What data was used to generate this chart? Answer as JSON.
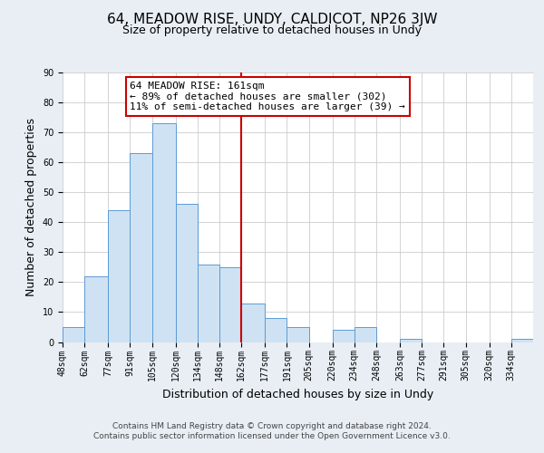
{
  "title": "64, MEADOW RISE, UNDY, CALDICOT, NP26 3JW",
  "subtitle": "Size of property relative to detached houses in Undy",
  "xlabel": "Distribution of detached houses by size in Undy",
  "ylabel": "Number of detached properties",
  "bin_labels": [
    "48sqm",
    "62sqm",
    "77sqm",
    "91sqm",
    "105sqm",
    "120sqm",
    "134sqm",
    "148sqm",
    "162sqm",
    "177sqm",
    "191sqm",
    "205sqm",
    "220sqm",
    "234sqm",
    "248sqm",
    "263sqm",
    "277sqm",
    "291sqm",
    "305sqm",
    "320sqm",
    "334sqm"
  ],
  "bin_edges": [
    48,
    62,
    77,
    91,
    105,
    120,
    134,
    148,
    162,
    177,
    191,
    205,
    220,
    234,
    248,
    263,
    277,
    291,
    305,
    320,
    334,
    348
  ],
  "counts": [
    5,
    22,
    44,
    63,
    73,
    46,
    26,
    25,
    13,
    8,
    5,
    0,
    4,
    5,
    0,
    1,
    0,
    0,
    0,
    0,
    1
  ],
  "bar_facecolor": "#cfe2f3",
  "bar_edgecolor": "#5b9bd5",
  "vline_x": 162,
  "vline_color": "#cc0000",
  "annotation_text": "64 MEADOW RISE: 161sqm\n← 89% of detached houses are smaller (302)\n11% of semi-detached houses are larger (39) →",
  "annotation_box_edgecolor": "#cc0000",
  "annotation_box_facecolor": "#ffffff",
  "ylim": [
    0,
    90
  ],
  "yticks": [
    0,
    10,
    20,
    30,
    40,
    50,
    60,
    70,
    80,
    90
  ],
  "footer_line1": "Contains HM Land Registry data © Crown copyright and database right 2024.",
  "footer_line2": "Contains public sector information licensed under the Open Government Licence v3.0.",
  "background_color": "#e8eef4",
  "plot_background_color": "#ffffff",
  "title_fontsize": 11,
  "subtitle_fontsize": 9,
  "axis_label_fontsize": 9,
  "tick_fontsize": 7,
  "footer_fontsize": 6.5,
  "annotation_fontsize": 8
}
